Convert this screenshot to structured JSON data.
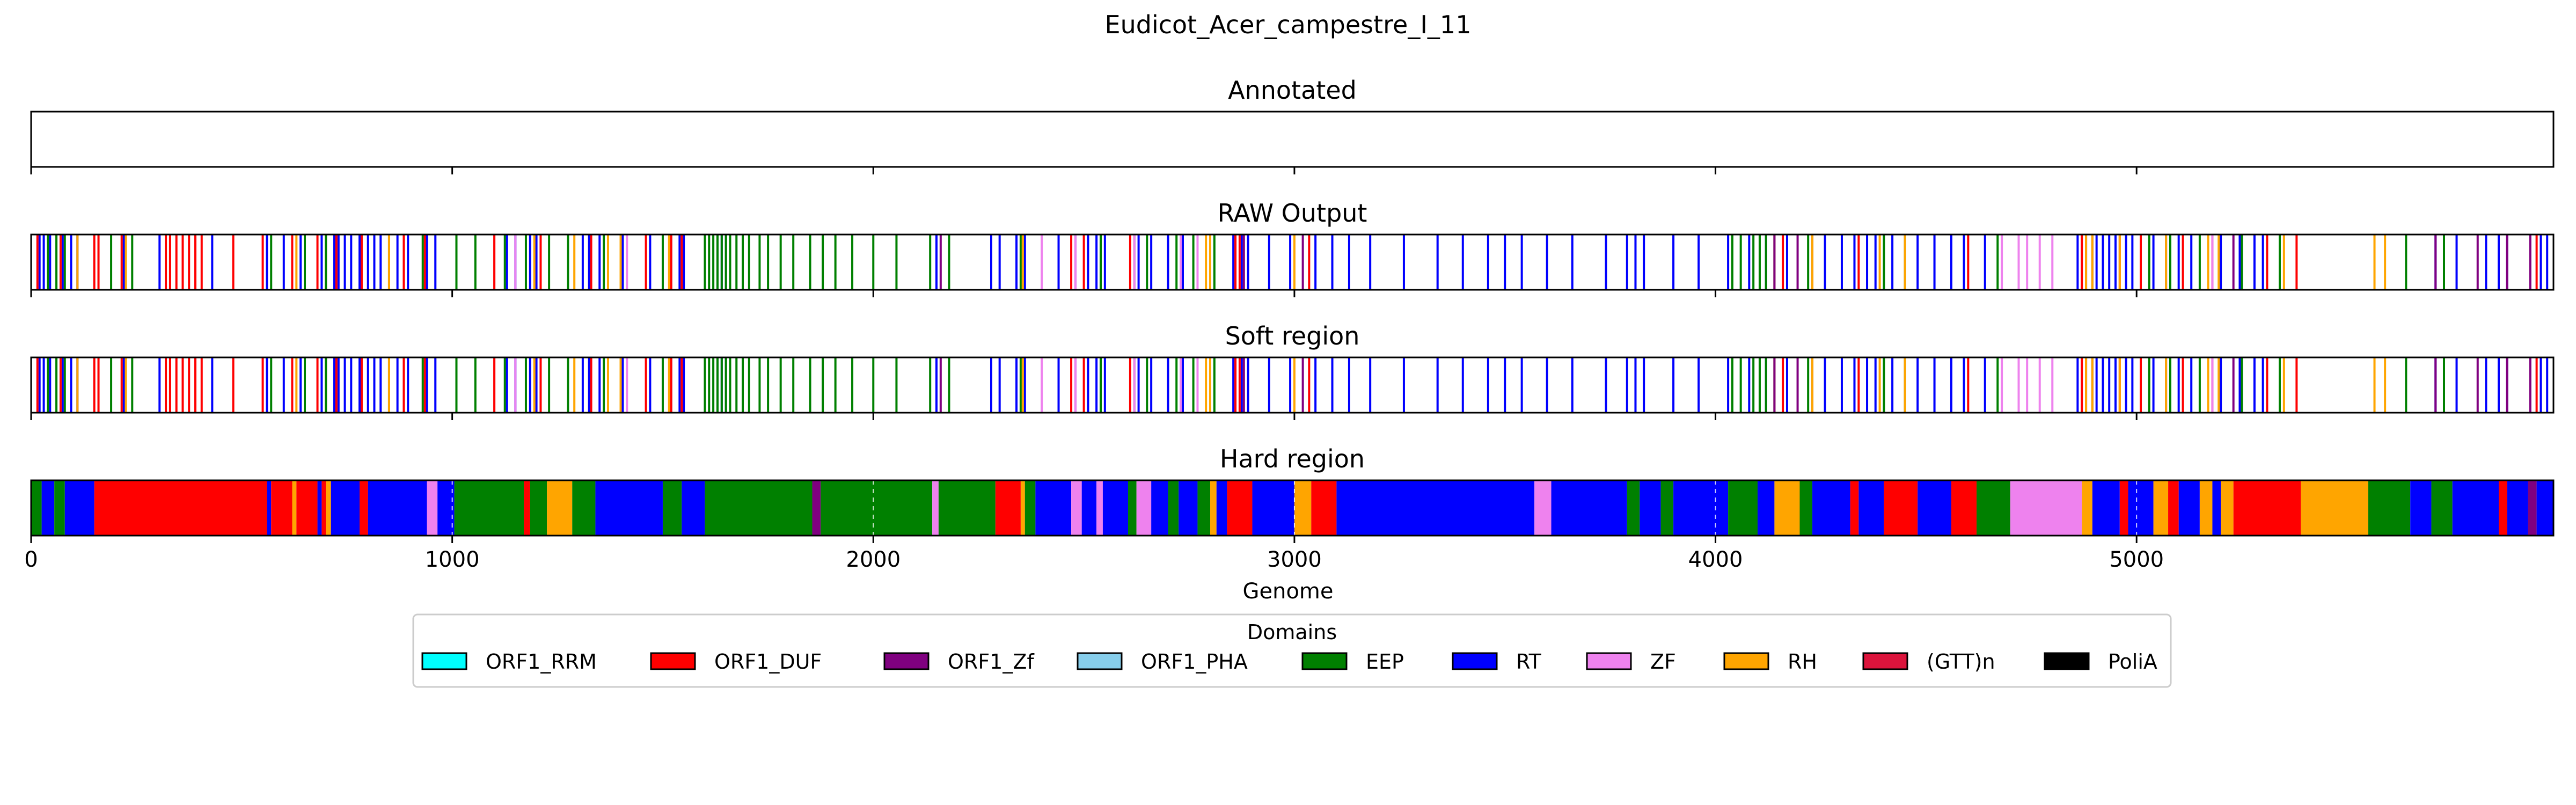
{
  "chart_data": {
    "type": "bar",
    "title": "Eudicot_Acer_campestre_I_11",
    "xlabel": "Genome",
    "xlim": [
      0,
      5990
    ],
    "xticks": [
      0,
      1000,
      2000,
      3000,
      4000,
      5000
    ],
    "panels": [
      {
        "title": "Annotated",
        "mode": "empty"
      },
      {
        "title": "RAW Output",
        "mode": "lines"
      },
      {
        "title": "Soft region",
        "mode": "lines"
      },
      {
        "title": "Hard region",
        "mode": "blocks"
      }
    ],
    "legend": {
      "title": "Domains",
      "placement": "bottom",
      "entries": [
        {
          "name": "ORF1_RRM",
          "color": "#00ffff"
        },
        {
          "name": "ORF1_DUF",
          "color": "#ff0000"
        },
        {
          "name": "ORF1_Zf",
          "color": "#800080"
        },
        {
          "name": "ORF1_PHA",
          "color": "#87ceeb"
        },
        {
          "name": "EEP",
          "color": "#008000"
        },
        {
          "name": "RT",
          "color": "#0000ff"
        },
        {
          "name": "ZF",
          "color": "#ee82ee"
        },
        {
          "name": "RH",
          "color": "#ffa500"
        },
        {
          "name": "(GTT)n",
          "color": "#dc143c"
        },
        {
          "name": "PoliA",
          "color": "#000000"
        }
      ]
    },
    "raw_hits": [
      {
        "domain": "RT",
        "x": [
          20,
          30,
          45,
          75,
          95,
          110,
          220,
          305,
          430,
          560,
          600,
          640,
          690,
          720,
          730,
          745,
          760,
          780,
          800,
          815,
          830,
          850,
          870,
          895,
          940,
          960,
          1130,
          1150,
          1185,
          1200,
          1310,
          1325,
          1350,
          1405,
          1470,
          1520,
          1540,
          1550,
          1630,
          1640,
          1650,
          2150,
          2280,
          2300,
          2340,
          2360,
          2440,
          2480,
          2510,
          2530,
          2550,
          2630,
          2660,
          2700,
          2735,
          2800,
          2855,
          2875,
          2890,
          2940,
          2990,
          3050,
          3090,
          3130,
          3180,
          3260,
          3340,
          3400,
          3460,
          3500,
          3540,
          3600,
          3660,
          3740,
          3790,
          3810,
          3830,
          3900,
          3960,
          4030,
          4080,
          4120,
          4170,
          4230,
          4260,
          4300,
          4330,
          4360,
          4380,
          4420,
          4450,
          4480,
          4520,
          4560,
          4590,
          4640,
          4860,
          4880,
          4895,
          4905,
          4920,
          4935,
          4950,
          4975,
          4990,
          5040,
          5070,
          5100,
          5130,
          5200,
          5245,
          5280,
          5300,
          5710,
          5760,
          5830,
          5860,
          5880,
          5960,
          5975
        ]
      },
      {
        "domain": "ORF1_DUF",
        "x": [
          15,
          70,
          150,
          160,
          215,
          320,
          330,
          345,
          360,
          375,
          390,
          405,
          480,
          550,
          620,
          680,
          700,
          725,
          785,
          885,
          935,
          1100,
          1210,
          1330,
          1460,
          1520,
          1545,
          2470,
          2500,
          2610,
          2870,
          2860,
          3035,
          4160,
          4340,
          4600,
          4870,
          4880,
          4960,
          5010,
          5110,
          5180,
          5310,
          5380,
          5950
        ]
      },
      {
        "domain": "EEP",
        "x": [
          40,
          60,
          80,
          190,
          240,
          570,
          650,
          700,
          930,
          1010,
          1055,
          1125,
          1175,
          1230,
          1275,
          1360,
          1500,
          1600,
          1610,
          1620,
          1630,
          1640,
          1650,
          1660,
          1675,
          1690,
          1705,
          1730,
          1750,
          1780,
          1810,
          1850,
          1880,
          1910,
          1950,
          2000,
          2055,
          2135,
          2180,
          2350,
          2540,
          2620,
          2650,
          2720,
          2760,
          2810,
          4040,
          4060,
          4090,
          4105,
          4120,
          4140,
          4220,
          4400,
          4450,
          4670,
          5030,
          5080,
          5150,
          5250,
          5340,
          5640,
          5730
        ]
      },
      {
        "domain": "RH",
        "x": [
          110,
          225,
          630,
          850,
          1195,
          1290,
          1370,
          1400,
          1515,
          2355,
          2790,
          2800,
          3000,
          4140,
          4230,
          4390,
          4450,
          4880,
          4895,
          4960,
          5070,
          5170,
          5195,
          5350,
          5565,
          5590
        ]
      },
      {
        "domain": "ZF",
        "x": [
          1150,
          1415,
          2400,
          2480,
          2620,
          2730,
          2770,
          4680,
          4720,
          4740,
          4770,
          4800,
          5180
        ]
      },
      {
        "domain": "ORF1_Zf",
        "x": [
          2160,
          2880,
          3020,
          4140,
          4195,
          5230,
          5710,
          5810,
          5880,
          5935
        ]
      }
    ],
    "hard_blocks": [
      {
        "domain": "EEP",
        "start": 0,
        "end": 25
      },
      {
        "domain": "RT",
        "start": 25,
        "end": 55
      },
      {
        "domain": "EEP",
        "start": 55,
        "end": 80
      },
      {
        "domain": "RT",
        "start": 80,
        "end": 150
      },
      {
        "domain": "ORF1_DUF",
        "start": 150,
        "end": 560
      },
      {
        "domain": "RT",
        "start": 560,
        "end": 570
      },
      {
        "domain": "ORF1_DUF",
        "start": 570,
        "end": 620
      },
      {
        "domain": "RH",
        "start": 620,
        "end": 630
      },
      {
        "domain": "ORF1_DUF",
        "start": 630,
        "end": 680
      },
      {
        "domain": "RT",
        "start": 680,
        "end": 690
      },
      {
        "domain": "ORF1_DUF",
        "start": 690,
        "end": 700
      },
      {
        "domain": "RH",
        "start": 700,
        "end": 712
      },
      {
        "domain": "RT",
        "start": 712,
        "end": 780
      },
      {
        "domain": "ORF1_DUF",
        "start": 780,
        "end": 800
      },
      {
        "domain": "RT",
        "start": 800,
        "end": 940
      },
      {
        "domain": "ZF",
        "start": 940,
        "end": 965
      },
      {
        "domain": "RT",
        "start": 965,
        "end": 1005
      },
      {
        "domain": "EEP",
        "start": 1005,
        "end": 1170
      },
      {
        "domain": "ORF1_DUF",
        "start": 1170,
        "end": 1185
      },
      {
        "domain": "EEP",
        "start": 1185,
        "end": 1225
      },
      {
        "domain": "RH",
        "start": 1225,
        "end": 1285
      },
      {
        "domain": "EEP",
        "start": 1285,
        "end": 1340
      },
      {
        "domain": "RT",
        "start": 1340,
        "end": 1500
      },
      {
        "domain": "EEP",
        "start": 1500,
        "end": 1545
      },
      {
        "domain": "RT",
        "start": 1545,
        "end": 1600
      },
      {
        "domain": "EEP",
        "start": 1600,
        "end": 1855
      },
      {
        "domain": "ORF1_Zf",
        "start": 1855,
        "end": 1875
      },
      {
        "domain": "EEP",
        "start": 1875,
        "end": 2140
      },
      {
        "domain": "ZF",
        "start": 2140,
        "end": 2155
      },
      {
        "domain": "EEP",
        "start": 2155,
        "end": 2290
      },
      {
        "domain": "ORF1_DUF",
        "start": 2290,
        "end": 2350
      },
      {
        "domain": "RH",
        "start": 2350,
        "end": 2360
      },
      {
        "domain": "EEP",
        "start": 2360,
        "end": 2385
      },
      {
        "domain": "RT",
        "start": 2385,
        "end": 2470
      },
      {
        "domain": "ZF",
        "start": 2470,
        "end": 2495
      },
      {
        "domain": "RT",
        "start": 2495,
        "end": 2530
      },
      {
        "domain": "ZF",
        "start": 2530,
        "end": 2545
      },
      {
        "domain": "RT",
        "start": 2545,
        "end": 2605
      },
      {
        "domain": "EEP",
        "start": 2605,
        "end": 2625
      },
      {
        "domain": "ZF",
        "start": 2625,
        "end": 2660
      },
      {
        "domain": "RT",
        "start": 2660,
        "end": 2700
      },
      {
        "domain": "EEP",
        "start": 2700,
        "end": 2725
      },
      {
        "domain": "RT",
        "start": 2725,
        "end": 2770
      },
      {
        "domain": "EEP",
        "start": 2770,
        "end": 2800
      },
      {
        "domain": "RH",
        "start": 2800,
        "end": 2815
      },
      {
        "domain": "RT",
        "start": 2815,
        "end": 2840
      },
      {
        "domain": "ORF1_DUF",
        "start": 2840,
        "end": 2900
      },
      {
        "domain": "RT",
        "start": 2900,
        "end": 3000
      },
      {
        "domain": "RH",
        "start": 3000,
        "end": 3040
      },
      {
        "domain": "ORF1_DUF",
        "start": 3040,
        "end": 3100
      },
      {
        "domain": "RT",
        "start": 3100,
        "end": 3570
      },
      {
        "domain": "ZF",
        "start": 3570,
        "end": 3610
      },
      {
        "domain": "RT",
        "start": 3610,
        "end": 3790
      },
      {
        "domain": "EEP",
        "start": 3790,
        "end": 3820
      },
      {
        "domain": "RT",
        "start": 3820,
        "end": 3870
      },
      {
        "domain": "EEP",
        "start": 3870,
        "end": 3900
      },
      {
        "domain": "RT",
        "start": 3900,
        "end": 4030
      },
      {
        "domain": "EEP",
        "start": 4030,
        "end": 4100
      },
      {
        "domain": "RT",
        "start": 4100,
        "end": 4140
      },
      {
        "domain": "RH",
        "start": 4140,
        "end": 4200
      },
      {
        "domain": "EEP",
        "start": 4200,
        "end": 4230
      },
      {
        "domain": "RT",
        "start": 4230,
        "end": 4320
      },
      {
        "domain": "ORF1_DUF",
        "start": 4320,
        "end": 4340
      },
      {
        "domain": "RT",
        "start": 4340,
        "end": 4400
      },
      {
        "domain": "ORF1_DUF",
        "start": 4400,
        "end": 4480
      },
      {
        "domain": "RT",
        "start": 4480,
        "end": 4560
      },
      {
        "domain": "ORF1_DUF",
        "start": 4560,
        "end": 4620
      },
      {
        "domain": "EEP",
        "start": 4620,
        "end": 4700
      },
      {
        "domain": "ZF",
        "start": 4700,
        "end": 4870
      },
      {
        "domain": "RH",
        "start": 4870,
        "end": 4895
      },
      {
        "domain": "RT",
        "start": 4895,
        "end": 4960
      },
      {
        "domain": "ORF1_DUF",
        "start": 4960,
        "end": 4980
      },
      {
        "domain": "RT",
        "start": 4980,
        "end": 5040
      },
      {
        "domain": "RH",
        "start": 5040,
        "end": 5075
      },
      {
        "domain": "ORF1_DUF",
        "start": 5075,
        "end": 5100
      },
      {
        "domain": "RT",
        "start": 5100,
        "end": 5150
      },
      {
        "domain": "RH",
        "start": 5150,
        "end": 5180
      },
      {
        "domain": "RT",
        "start": 5180,
        "end": 5200
      },
      {
        "domain": "RH",
        "start": 5200,
        "end": 5230
      },
      {
        "domain": "ORF1_DUF",
        "start": 5230,
        "end": 5390
      },
      {
        "domain": "RH",
        "start": 5390,
        "end": 5550
      },
      {
        "domain": "EEP",
        "start": 5550,
        "end": 5650
      },
      {
        "domain": "RT",
        "start": 5650,
        "end": 5700
      },
      {
        "domain": "EEP",
        "start": 5700,
        "end": 5750
      },
      {
        "domain": "RT",
        "start": 5750,
        "end": 5860
      },
      {
        "domain": "ORF1_DUF",
        "start": 5860,
        "end": 5880
      },
      {
        "domain": "RT",
        "start": 5880,
        "end": 5930
      },
      {
        "domain": "ORF1_Zf",
        "start": 5930,
        "end": 5950
      },
      {
        "domain": "RT",
        "start": 5950,
        "end": 5990
      }
    ]
  }
}
